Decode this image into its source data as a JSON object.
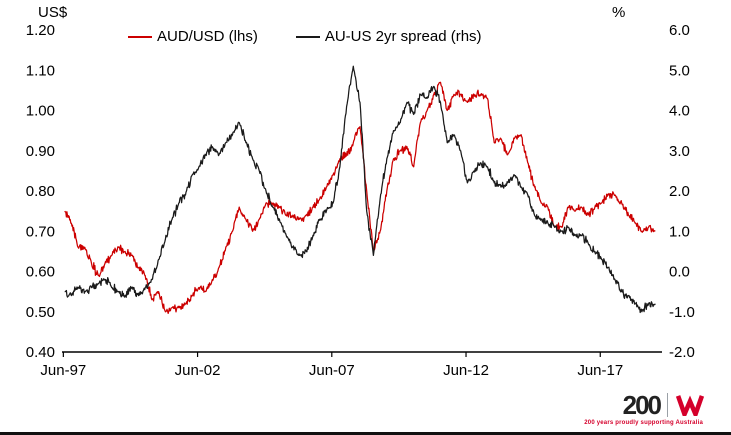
{
  "chart_data": {
    "type": "line",
    "title": "",
    "legend_position": "top",
    "grid": false,
    "left_axis": {
      "unit_label": "US$",
      "min": 0.4,
      "max": 1.2,
      "ticks": [
        "1.20",
        "1.10",
        "1.00",
        "0.90",
        "0.80",
        "0.70",
        "0.60",
        "0.50",
        "0.40"
      ]
    },
    "right_axis": {
      "unit_label": "%",
      "min": -2.0,
      "max": 6.0,
      "ticks": [
        "6.0",
        "5.0",
        "4.0",
        "3.0",
        "2.0",
        "1.0",
        "0.0",
        "-1.0",
        "-2.0"
      ]
    },
    "x_axis": {
      "min": 1997.4,
      "max": 2019.75,
      "tick_positions": [
        1997.45,
        2002.45,
        2007.45,
        2012.45,
        2017.45
      ],
      "tick_labels": [
        "Jun-97",
        "Jun-02",
        "Jun-07",
        "Jun-12",
        "Jun-17"
      ]
    },
    "series": [
      {
        "name": "AUD/USD (lhs)",
        "axis": "left",
        "color": "#cc0000",
        "x_start": 1997.5,
        "x_step": 0.25,
        "values": [
          0.75,
          0.72,
          0.66,
          0.66,
          0.62,
          0.59,
          0.62,
          0.64,
          0.66,
          0.65,
          0.64,
          0.61,
          0.59,
          0.53,
          0.55,
          0.5,
          0.51,
          0.51,
          0.52,
          0.54,
          0.56,
          0.55,
          0.58,
          0.61,
          0.66,
          0.7,
          0.76,
          0.73,
          0.7,
          0.73,
          0.77,
          0.77,
          0.76,
          0.74,
          0.74,
          0.73,
          0.74,
          0.76,
          0.78,
          0.81,
          0.84,
          0.88,
          0.89,
          0.92,
          0.96,
          0.8,
          0.65,
          0.7,
          0.8,
          0.88,
          0.9,
          0.91,
          0.86,
          0.97,
          1.0,
          1.04,
          1.07,
          1.0,
          1.04,
          1.04,
          1.02,
          1.04,
          1.04,
          1.03,
          0.92,
          0.93,
          0.89,
          0.93,
          0.94,
          0.87,
          0.81,
          0.77,
          0.76,
          0.71,
          0.71,
          0.76,
          0.75,
          0.76,
          0.74,
          0.76,
          0.77,
          0.79,
          0.79,
          0.77,
          0.74,
          0.72,
          0.7,
          0.71,
          0.7
        ]
      },
      {
        "name": "AU-US 2yr spread (rhs)",
        "axis": "right",
        "color": "#1a1a1a",
        "x_start": 1997.5,
        "x_step": 0.25,
        "values": [
          -0.5,
          -0.6,
          -0.4,
          -0.5,
          -0.4,
          -0.3,
          -0.2,
          -0.4,
          -0.5,
          -0.6,
          -0.4,
          -0.6,
          -0.4,
          -0.2,
          0.3,
          0.8,
          1.3,
          1.7,
          1.9,
          2.4,
          2.6,
          2.9,
          3.1,
          2.9,
          3.2,
          3.4,
          3.7,
          3.2,
          2.8,
          2.5,
          2.0,
          1.6,
          1.3,
          0.9,
          0.6,
          0.4,
          0.5,
          0.9,
          1.3,
          1.5,
          1.7,
          2.6,
          4.1,
          5.1,
          4.2,
          1.5,
          0.4,
          1.8,
          2.8,
          3.5,
          3.7,
          4.2,
          3.9,
          4.4,
          4.3,
          4.6,
          4.2,
          3.2,
          3.4,
          3.0,
          2.2,
          2.5,
          2.7,
          2.6,
          2.2,
          2.1,
          2.2,
          2.4,
          2.1,
          1.9,
          1.4,
          1.3,
          1.2,
          1.1,
          1.0,
          1.1,
          0.9,
          0.9,
          0.7,
          0.5,
          0.3,
          0.1,
          -0.2,
          -0.5,
          -0.6,
          -0.8,
          -1.0,
          -0.8,
          -0.8
        ]
      }
    ]
  },
  "footer": {
    "logo_text": "200",
    "tagline": "200 years proudly supporting Australia",
    "brand_color": "#d5002b"
  }
}
